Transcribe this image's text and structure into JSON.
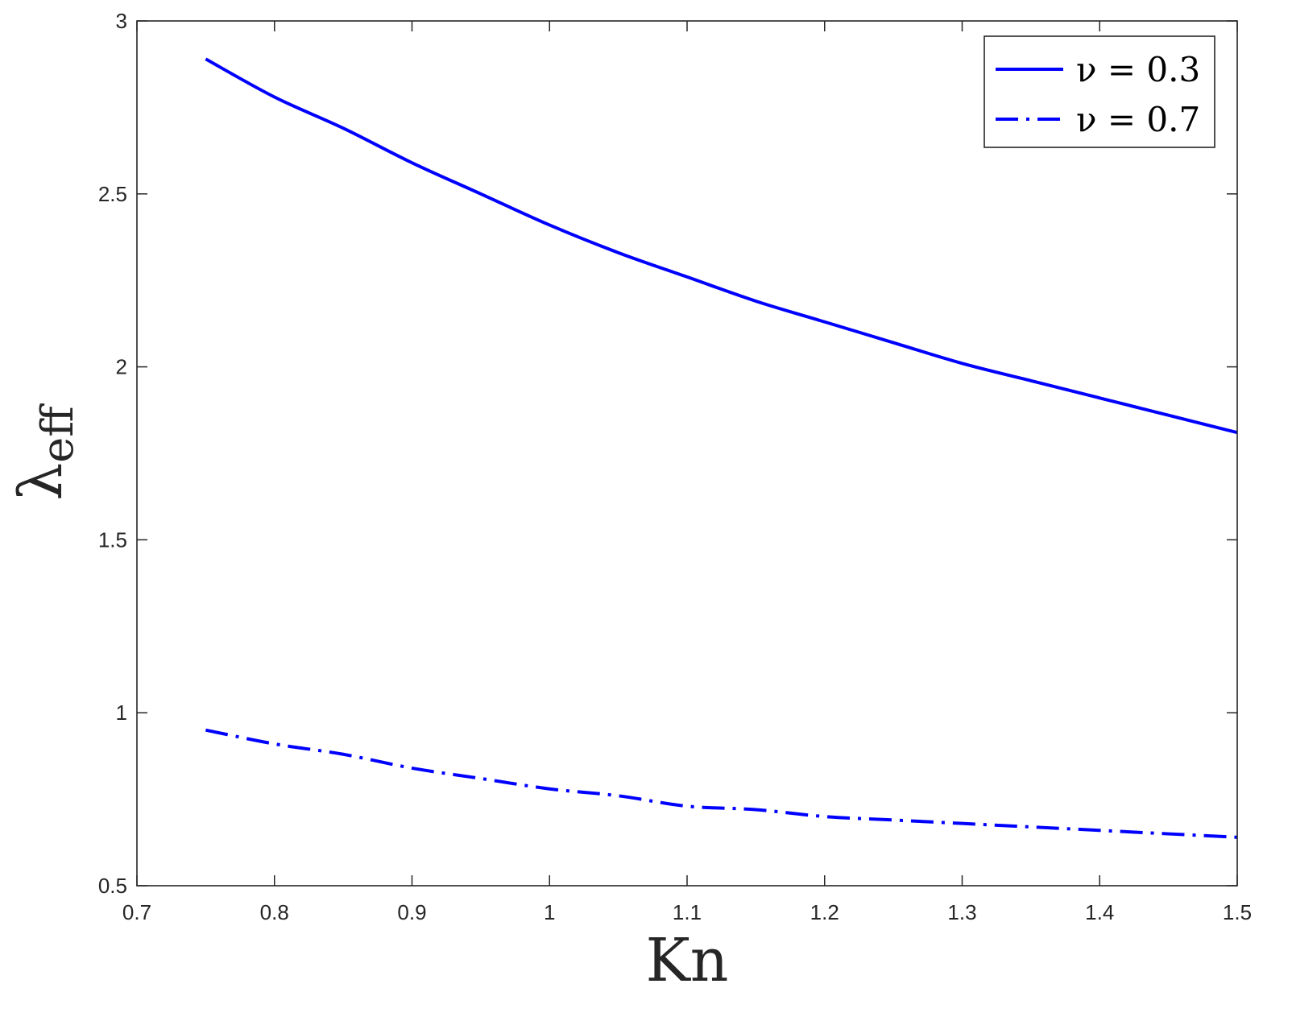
{
  "chart_data": {
    "type": "line",
    "xlabel": "Kn",
    "ylabel": {
      "base": "λ",
      "subscript": "eff"
    },
    "xlim": [
      0.7,
      1.5
    ],
    "ylim": [
      0.5,
      3
    ],
    "xticks": [
      0.7,
      0.8,
      0.9,
      1,
      1.1,
      1.2,
      1.3,
      1.4,
      1.5
    ],
    "yticks": [
      0.5,
      1,
      1.5,
      2,
      2.5,
      3
    ],
    "xtick_labels": [
      "0.7",
      "0.8",
      "0.9",
      "1",
      "1.1",
      "1.2",
      "1.3",
      "1.4",
      "1.5"
    ],
    "ytick_labels": [
      "0.5",
      "1",
      "1.5",
      "2",
      "2.5",
      "3"
    ],
    "grid": false,
    "legend_position": "top-right",
    "series": [
      {
        "name": "ν = 0.3",
        "line_style": "solid",
        "color": "#0000ff",
        "x": [
          0.75,
          0.8,
          0.85,
          0.9,
          0.95,
          1.0,
          1.05,
          1.1,
          1.15,
          1.2,
          1.25,
          1.3,
          1.35,
          1.4,
          1.45,
          1.5
        ],
        "y": [
          2.89,
          2.78,
          2.69,
          2.59,
          2.5,
          2.41,
          2.33,
          2.26,
          2.19,
          2.13,
          2.07,
          2.01,
          1.96,
          1.91,
          1.86,
          1.81
        ]
      },
      {
        "name": "ν = 0.7",
        "line_style": "dash-dot",
        "color": "#0000ff",
        "x": [
          0.75,
          0.8,
          0.85,
          0.9,
          0.95,
          1.0,
          1.05,
          1.1,
          1.15,
          1.2,
          1.25,
          1.3,
          1.35,
          1.4,
          1.45,
          1.5
        ],
        "y": [
          0.95,
          0.91,
          0.88,
          0.84,
          0.81,
          0.78,
          0.76,
          0.73,
          0.72,
          0.7,
          0.69,
          0.68,
          0.67,
          0.66,
          0.65,
          0.64
        ]
      }
    ]
  }
}
